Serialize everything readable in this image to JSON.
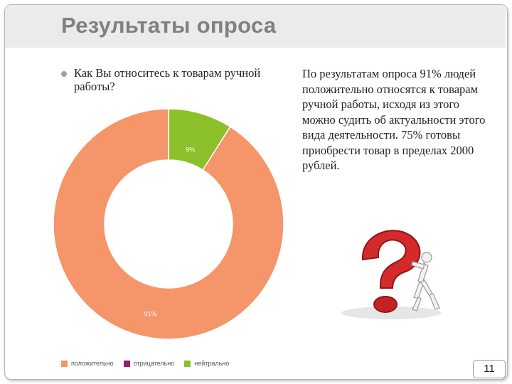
{
  "slide": {
    "title": "Результаты опроса",
    "question_text": "Как Вы относитесь к товарам ручной работы?",
    "summary_text": "По результатам опроса 91% людей положительно относятся к товарам ручной работы, исходя из этого можно судить об актуальности этого вида деятельности. 75% готовы приобрести товар в пределах 2000 рублей.",
    "page_number": "11",
    "image_icon": "question-mark-figure-icon"
  },
  "colors": {
    "positive": "#f4956a",
    "negative": "#9b1d6a",
    "neutral": "#8cc02a",
    "question_mark": "#d42a2a"
  },
  "chart_data": {
    "type": "pie",
    "donut": true,
    "title": "",
    "categories": [
      "положительно",
      "отрицательно",
      "нейтрально"
    ],
    "values": [
      91,
      0,
      9
    ],
    "data_labels": [
      "91%",
      "",
      "9%"
    ],
    "legend_labels": [
      "положительно",
      "отрицательно",
      "нейтрально"
    ],
    "legend_position": "bottom-left"
  }
}
